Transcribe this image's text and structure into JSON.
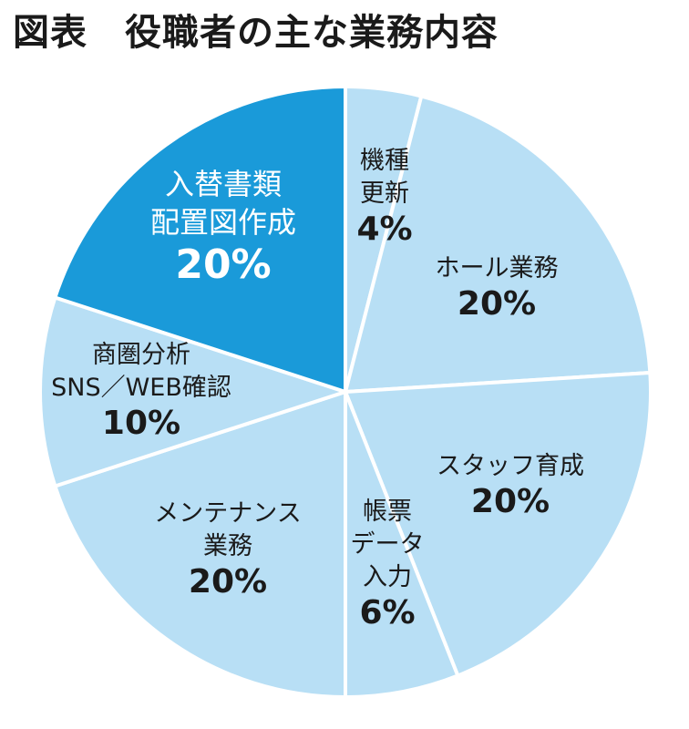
{
  "title": "図表　役職者の主な業務内容",
  "chart_data": {
    "type": "pie",
    "start_angle_deg": 0,
    "direction": "clockwise",
    "colors": {
      "default": "#b8dff5",
      "highlight": "#1a9ad9",
      "separator": "#ffffff"
    },
    "slices": [
      {
        "id": "kishu",
        "label_lines": [
          "機種",
          "更新"
        ],
        "percent_label": "4%",
        "value": 4,
        "highlight": false
      },
      {
        "id": "hall",
        "label_lines": [
          "ホール業務"
        ],
        "percent_label": "20%",
        "value": 20,
        "highlight": false
      },
      {
        "id": "staff",
        "label_lines": [
          "スタッフ育成"
        ],
        "percent_label": "20%",
        "value": 20,
        "highlight": false
      },
      {
        "id": "chohyo",
        "label_lines": [
          "帳票",
          "データ",
          "入力"
        ],
        "percent_label": "6%",
        "value": 6,
        "highlight": false
      },
      {
        "id": "maint",
        "label_lines": [
          "メンテナンス",
          "業務"
        ],
        "percent_label": "20%",
        "value": 20,
        "highlight": false
      },
      {
        "id": "shoken",
        "label_lines": [
          "商圏分析",
          "SNS／WEB確認"
        ],
        "percent_label": "10%",
        "value": 10,
        "highlight": false
      },
      {
        "id": "irekae",
        "label_lines": [
          "入替書類",
          "配置図作成"
        ],
        "percent_label": "20%",
        "value": 20,
        "highlight": true
      }
    ]
  }
}
